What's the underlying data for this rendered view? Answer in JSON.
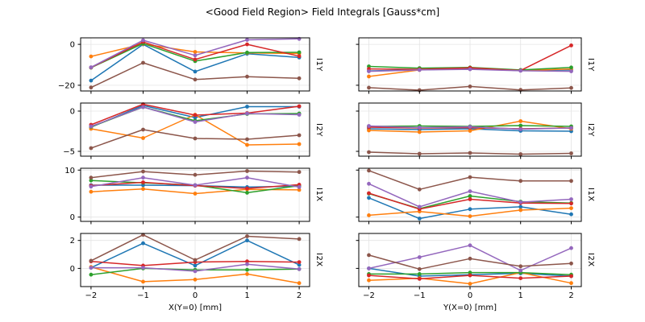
{
  "title": "<Good Field Region> Field Integrals [Gauss*cm]",
  "columns": [
    {
      "xlabel": "X(Y=0) [mm]"
    },
    {
      "xlabel": "Y(X=0) [mm]"
    }
  ],
  "style": {
    "grid_color": "#e4e4e4",
    "spine_color": "#000000",
    "line_width": 1.5,
    "marker_radius": 2.4
  },
  "chart_data": [
    {
      "type": "line",
      "row_label": "I1Y",
      "column": 0,
      "x": [
        -2,
        -1,
        0,
        1,
        2
      ],
      "xlim": [
        -2.2,
        2.2
      ],
      "ylim": [
        -22.8,
        3.2
      ],
      "xticks": [
        -2,
        -1,
        0,
        1,
        2
      ],
      "yticks": [
        -20,
        0
      ],
      "show_xticklabels": false,
      "show_yticklabels": true,
      "series": [
        {
          "name": "series-blue",
          "color": "#1f77b4",
          "values": [
            -17.7,
            0.0,
            -13.3,
            -4.6,
            -6.4
          ]
        },
        {
          "name": "series-orange",
          "color": "#ff7f0e",
          "values": [
            -5.9,
            0.2,
            -3.7,
            -4.2,
            -4.5
          ]
        },
        {
          "name": "series-green",
          "color": "#2ca02c",
          "values": [
            -11.4,
            0.4,
            -8.2,
            -4.0,
            -3.9
          ]
        },
        {
          "name": "series-red",
          "color": "#d62728",
          "values": [
            -11.3,
            1.2,
            -7.4,
            0.0,
            -5.8
          ]
        },
        {
          "name": "series-purple",
          "color": "#9467bd",
          "values": [
            -11.2,
            2.0,
            -5.4,
            2.2,
            2.7
          ]
        },
        {
          "name": "series-brown",
          "color": "#8c564b",
          "values": [
            -21.1,
            -9.0,
            -17.2,
            -15.8,
            -16.6
          ]
        }
      ]
    },
    {
      "type": "line",
      "row_label": "I1Y",
      "column": 1,
      "x": [
        -2,
        -1,
        0,
        1,
        2
      ],
      "xlim": [
        -2.2,
        2.2
      ],
      "ylim": [
        -22.8,
        3.2
      ],
      "xticks": [
        -2,
        -1,
        0,
        1,
        2
      ],
      "yticks": [
        -20,
        0
      ],
      "show_xticklabels": false,
      "show_yticklabels": false,
      "series": [
        {
          "name": "series-blue",
          "color": "#1f77b4",
          "values": [
            -13.0,
            -12.4,
            -12.0,
            -12.8,
            -12.5
          ]
        },
        {
          "name": "series-orange",
          "color": "#ff7f0e",
          "values": [
            -15.7,
            -12.5,
            -11.4,
            -12.8,
            -12.1
          ]
        },
        {
          "name": "series-green",
          "color": "#2ca02c",
          "values": [
            -10.8,
            -11.6,
            -11.3,
            -12.5,
            -11.3
          ]
        },
        {
          "name": "series-red",
          "color": "#d62728",
          "values": [
            -12.0,
            -12.2,
            -11.5,
            -12.8,
            -0.5
          ]
        },
        {
          "name": "series-purple",
          "color": "#9467bd",
          "values": [
            -13.2,
            -12.5,
            -12.2,
            -12.9,
            -13.2
          ]
        },
        {
          "name": "series-brown",
          "color": "#8c564b",
          "values": [
            -21.2,
            -22.4,
            -20.6,
            -22.3,
            -21.3
          ]
        }
      ]
    },
    {
      "type": "line",
      "row_label": "I2Y",
      "column": 0,
      "x": [
        -2,
        -1,
        0,
        1,
        2
      ],
      "xlim": [
        -2.2,
        2.2
      ],
      "ylim": [
        -5.6,
        1.0
      ],
      "xticks": [
        -2,
        -1,
        0,
        1,
        2
      ],
      "yticks": [
        -5,
        0
      ],
      "show_xticklabels": false,
      "show_yticklabels": true,
      "series": [
        {
          "name": "series-blue",
          "color": "#1f77b4",
          "values": [
            -2.0,
            0.7,
            -0.8,
            0.55,
            0.55
          ]
        },
        {
          "name": "series-orange",
          "color": "#ff7f0e",
          "values": [
            -2.2,
            -3.35,
            -0.45,
            -4.2,
            -4.1
          ]
        },
        {
          "name": "series-green",
          "color": "#2ca02c",
          "values": [
            -1.95,
            0.5,
            -1.2,
            -0.35,
            -0.3
          ]
        },
        {
          "name": "series-red",
          "color": "#d62728",
          "values": [
            -1.7,
            0.85,
            -0.5,
            -0.25,
            0.6
          ]
        },
        {
          "name": "series-purple",
          "color": "#9467bd",
          "values": [
            -1.9,
            0.5,
            -1.35,
            -0.3,
            -0.45
          ]
        },
        {
          "name": "series-brown",
          "color": "#8c564b",
          "values": [
            -4.6,
            -2.3,
            -3.4,
            -3.5,
            -3.0
          ]
        }
      ]
    },
    {
      "type": "line",
      "row_label": "I2Y",
      "column": 1,
      "x": [
        -2,
        -1,
        0,
        1,
        2
      ],
      "xlim": [
        -2.2,
        2.2
      ],
      "ylim": [
        -5.6,
        1.0
      ],
      "xticks": [
        -2,
        -1,
        0,
        1,
        2
      ],
      "yticks": [
        -5,
        0
      ],
      "show_xticklabels": false,
      "show_yticklabels": false,
      "series": [
        {
          "name": "series-blue",
          "color": "#1f77b4",
          "values": [
            -2.2,
            -2.3,
            -2.2,
            -2.45,
            -2.5
          ]
        },
        {
          "name": "series-orange",
          "color": "#ff7f0e",
          "values": [
            -2.4,
            -2.6,
            -2.45,
            -1.25,
            -2.2
          ]
        },
        {
          "name": "series-green",
          "color": "#2ca02c",
          "values": [
            -1.9,
            -1.85,
            -1.9,
            -1.8,
            -1.9
          ]
        },
        {
          "name": "series-red",
          "color": "#d62728",
          "values": [
            -2.0,
            -2.1,
            -2.05,
            -2.2,
            -2.1
          ]
        },
        {
          "name": "series-purple",
          "color": "#9467bd",
          "values": [
            -1.85,
            -2.05,
            -1.95,
            -2.25,
            -2.1
          ]
        },
        {
          "name": "series-brown",
          "color": "#8c564b",
          "values": [
            -5.1,
            -5.3,
            -5.2,
            -5.35,
            -5.25
          ]
        }
      ]
    },
    {
      "type": "line",
      "row_label": "I1X",
      "column": 0,
      "x": [
        -2,
        -1,
        0,
        1,
        2
      ],
      "xlim": [
        -2.2,
        2.2
      ],
      "ylim": [
        -0.9,
        10.4
      ],
      "xticks": [
        -2,
        -1,
        0,
        1,
        2
      ],
      "yticks": [
        0,
        10
      ],
      "show_xticklabels": false,
      "show_yticklabels": true,
      "series": [
        {
          "name": "series-blue",
          "color": "#1f77b4",
          "values": [
            6.8,
            6.8,
            6.7,
            6.4,
            6.6
          ]
        },
        {
          "name": "series-orange",
          "color": "#ff7f0e",
          "values": [
            5.4,
            6.0,
            5.0,
            5.9,
            5.8
          ]
        },
        {
          "name": "series-green",
          "color": "#2ca02c",
          "values": [
            7.8,
            7.3,
            6.8,
            5.2,
            6.7
          ]
        },
        {
          "name": "series-red",
          "color": "#d62728",
          "values": [
            6.7,
            7.4,
            6.7,
            6.1,
            6.9
          ]
        },
        {
          "name": "series-purple",
          "color": "#9467bd",
          "values": [
            6.5,
            8.4,
            6.8,
            8.4,
            6.4
          ]
        },
        {
          "name": "series-brown",
          "color": "#8c564b",
          "values": [
            8.4,
            9.7,
            9.0,
            9.8,
            9.6
          ]
        }
      ]
    },
    {
      "type": "line",
      "row_label": "I1X",
      "column": 1,
      "x": [
        -2,
        -1,
        0,
        1,
        2
      ],
      "xlim": [
        -2.2,
        2.2
      ],
      "ylim": [
        -0.9,
        10.4
      ],
      "xticks": [
        -2,
        -1,
        0,
        1,
        2
      ],
      "yticks": [
        0,
        10
      ],
      "show_xticklabels": false,
      "show_yticklabels": false,
      "series": [
        {
          "name": "series-blue",
          "color": "#1f77b4",
          "values": [
            4.1,
            -0.3,
            1.7,
            2.2,
            0.6
          ]
        },
        {
          "name": "series-orange",
          "color": "#ff7f0e",
          "values": [
            0.4,
            1.2,
            0.2,
            1.5,
            1.9
          ]
        },
        {
          "name": "series-green",
          "color": "#2ca02c",
          "values": [
            5.0,
            1.8,
            4.5,
            3.3,
            3.0
          ]
        },
        {
          "name": "series-red",
          "color": "#d62728",
          "values": [
            5.1,
            1.7,
            3.8,
            3.0,
            2.9
          ]
        },
        {
          "name": "series-purple",
          "color": "#9467bd",
          "values": [
            7.1,
            2.2,
            5.5,
            3.2,
            3.8
          ]
        },
        {
          "name": "series-brown",
          "color": "#8c564b",
          "values": [
            9.9,
            5.9,
            8.5,
            7.7,
            7.7
          ]
        }
      ]
    },
    {
      "type": "line",
      "row_label": "I2X",
      "column": 0,
      "x": [
        -2,
        -1,
        0,
        1,
        2
      ],
      "xlim": [
        -2.2,
        2.2
      ],
      "ylim": [
        -1.3,
        2.5
      ],
      "xticks": [
        -2,
        -1,
        0,
        1,
        2
      ],
      "yticks": [
        0,
        2
      ],
      "show_xticklabels": true,
      "show_yticklabels": true,
      "series": [
        {
          "name": "series-blue",
          "color": "#1f77b4",
          "values": [
            0.05,
            1.8,
            0.2,
            2.0,
            0.25
          ]
        },
        {
          "name": "series-orange",
          "color": "#ff7f0e",
          "values": [
            0.1,
            -0.95,
            -0.8,
            -0.4,
            -1.05
          ]
        },
        {
          "name": "series-green",
          "color": "#2ca02c",
          "values": [
            -0.45,
            0.0,
            -0.1,
            -0.1,
            -0.05
          ]
        },
        {
          "name": "series-red",
          "color": "#d62728",
          "values": [
            0.5,
            0.2,
            0.45,
            0.5,
            0.45
          ]
        },
        {
          "name": "series-purple",
          "color": "#9467bd",
          "values": [
            0.05,
            0.05,
            -0.2,
            0.3,
            -0.05
          ]
        },
        {
          "name": "series-brown",
          "color": "#8c564b",
          "values": [
            0.55,
            2.4,
            0.6,
            2.3,
            2.1
          ]
        }
      ]
    },
    {
      "type": "line",
      "row_label": "I2X",
      "column": 1,
      "x": [
        -2,
        -1,
        0,
        1,
        2
      ],
      "xlim": [
        -2.2,
        2.2
      ],
      "ylim": [
        -1.3,
        2.5
      ],
      "xticks": [
        -2,
        -1,
        0,
        1,
        2
      ],
      "yticks": [
        0,
        2
      ],
      "show_xticklabels": true,
      "show_yticklabels": false,
      "series": [
        {
          "name": "series-blue",
          "color": "#1f77b4",
          "values": [
            0.0,
            -0.55,
            -0.45,
            -0.35,
            -0.55
          ]
        },
        {
          "name": "series-orange",
          "color": "#ff7f0e",
          "values": [
            -0.85,
            -0.7,
            -1.1,
            -0.3,
            -1.05
          ]
        },
        {
          "name": "series-green",
          "color": "#2ca02c",
          "values": [
            -0.4,
            -0.4,
            -0.3,
            -0.3,
            -0.45
          ]
        },
        {
          "name": "series-red",
          "color": "#d62728",
          "values": [
            -0.5,
            -0.75,
            -0.5,
            -0.7,
            -0.55
          ]
        },
        {
          "name": "series-purple",
          "color": "#9467bd",
          "values": [
            0.0,
            0.8,
            1.65,
            -0.15,
            1.45
          ]
        },
        {
          "name": "series-brown",
          "color": "#8c564b",
          "values": [
            0.95,
            -0.05,
            0.7,
            0.15,
            0.35
          ]
        }
      ]
    }
  ]
}
